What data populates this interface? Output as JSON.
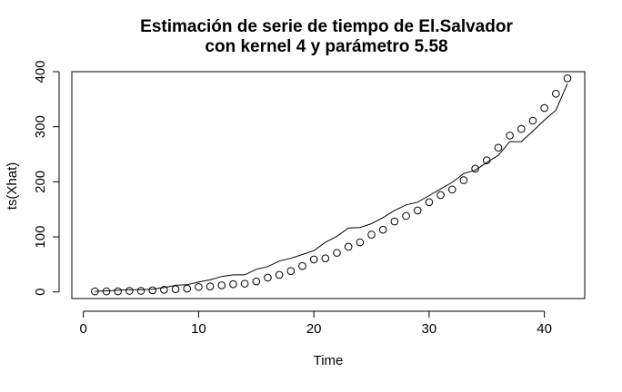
{
  "chart_data": {
    "type": "scatter",
    "title_line1": "Estimación de serie de tiempo de El.Salvador",
    "title_line2": "con kernel 4 y parámetro 5.58",
    "xlabel": "Time",
    "ylabel": "ts(Xhat)",
    "xlim": [
      -1,
      43.5
    ],
    "ylim": [
      -12,
      400
    ],
    "xticks": [
      0,
      10,
      20,
      30,
      40
    ],
    "yticks": [
      0,
      100,
      200,
      300,
      400
    ],
    "grid": false,
    "legend": "none",
    "series": [
      {
        "style": "points",
        "x": [
          1,
          2,
          3,
          4,
          5,
          6,
          7,
          8,
          9,
          10,
          11,
          12,
          13,
          14,
          15,
          16,
          17,
          18,
          19,
          20,
          21,
          22,
          23,
          24,
          25,
          26,
          27,
          28,
          29,
          30,
          31,
          32,
          33,
          34,
          35,
          36,
          37,
          38,
          39,
          40,
          41,
          42
        ],
        "y": [
          1,
          1,
          1,
          2,
          2,
          3,
          4,
          5,
          6,
          9,
          10,
          12,
          14,
          15,
          19,
          26,
          31,
          38,
          47,
          59,
          61,
          71,
          82,
          90,
          104,
          113,
          128,
          138,
          148,
          163,
          176,
          186,
          203,
          224,
          239,
          262,
          284,
          296,
          311,
          334,
          360,
          388
        ]
      },
      {
        "style": "line",
        "x": [
          1,
          2,
          3,
          4,
          5,
          6,
          7,
          8,
          9,
          10,
          11,
          12,
          13,
          14,
          15,
          16,
          17,
          18,
          19,
          20,
          21,
          22,
          23,
          24,
          25,
          26,
          27,
          28,
          29,
          30,
          31,
          32,
          33,
          34,
          35,
          36,
          37,
          38,
          39,
          40,
          41,
          42
        ],
        "y": [
          1,
          2,
          3,
          4,
          4,
          5,
          8,
          12,
          13,
          18,
          22,
          28,
          31,
          31,
          41,
          46,
          56,
          61,
          68,
          75,
          90,
          101,
          116,
          117,
          124,
          135,
          148,
          158,
          163,
          175,
          187,
          199,
          215,
          221,
          235,
          248,
          273,
          273,
          292,
          312,
          330,
          378
        ]
      }
    ]
  }
}
